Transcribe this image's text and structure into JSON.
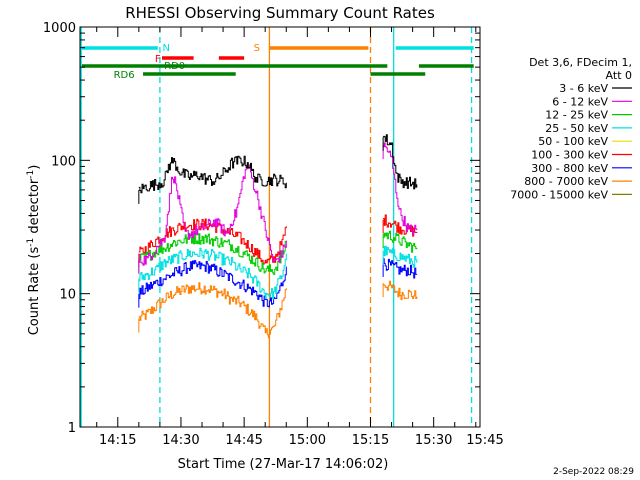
{
  "chart_data": {
    "type": "line",
    "title": "RHESSI Observing Summary Count Rates",
    "xlabel": "Start Time (27-Mar-17 14:06:02)",
    "ylabel_main": "Count Rate (s",
    "ylabel_sup1": "-1",
    "ylabel_mid": " detector",
    "ylabel_sup2": "-1",
    "ylabel_end": ")",
    "yscale": "log",
    "ylim": [
      1,
      1000
    ],
    "xlim_minutes": [
      6.03,
      101.0
    ],
    "y_ticks": [
      {
        "value": 1,
        "label": "1"
      },
      {
        "value": 10,
        "label": "10"
      },
      {
        "value": 100,
        "label": "100"
      },
      {
        "value": 1000,
        "label": "1000"
      }
    ],
    "x_ticks": [
      {
        "minute": 15,
        "label": "14:15"
      },
      {
        "minute": 30,
        "label": "14:30"
      },
      {
        "minute": 45,
        "label": "14:45"
      },
      {
        "minute": 60,
        "label": "15:00"
      },
      {
        "minute": 75,
        "label": "15:15"
      },
      {
        "minute": 90,
        "label": "15:30"
      },
      {
        "minute": 105,
        "label": "15:45"
      }
    ],
    "legend": {
      "placement": "right",
      "header": [
        "Det 3,6, FDecim 1,",
        "Att 0"
      ],
      "entries": [
        {
          "label": "3 - 6 keV",
          "color": "#000000"
        },
        {
          "label": "6 - 12 keV",
          "color": "#e000e0"
        },
        {
          "label": "12 - 25 keV",
          "color": "#00cc00"
        },
        {
          "label": "25 - 50 keV",
          "color": "#00e0e0"
        },
        {
          "label": "50 - 100 keV",
          "color": "#e0e000"
        },
        {
          "label": "100 - 300 keV",
          "color": "#ff0000"
        },
        {
          "label": "300 - 800 keV",
          "color": "#0000ff"
        },
        {
          "label": "800 - 7000 keV",
          "color": "#ff8000"
        },
        {
          "label": "7000 - 15000 keV",
          "color": "#808000"
        }
      ]
    },
    "vertical_markers": [
      {
        "minute": 6.3,
        "color": "#00e0e0",
        "style": "solid"
      },
      {
        "minute": 25.0,
        "color": "#00e0e0",
        "style": "dashed"
      },
      {
        "minute": 51.0,
        "color": "#ff8000",
        "style": "solid"
      },
      {
        "minute": 75.0,
        "color": "#ff8000",
        "style": "dashed"
      },
      {
        "minute": 80.5,
        "color": "#00e0e0",
        "style": "solid"
      },
      {
        "minute": 99.0,
        "color": "#00e0e0",
        "style": "dashed"
      }
    ],
    "flag_bars": [
      {
        "label": "N",
        "color": "#00e0e0",
        "label_color": "#00e0e0",
        "segments": [
          [
            6.5,
            24.5
          ],
          [
            81.0,
            99.5
          ]
        ],
        "label_minute": 26.5,
        "row": 0
      },
      {
        "label": "S",
        "color": "#ff8000",
        "label_color": "#ff8000",
        "segments": [
          [
            51.0,
            74.5
          ]
        ],
        "label_minute": 48.0,
        "row": 0
      },
      {
        "label": "F",
        "color": "#ff0000",
        "label_color": "#ff0000",
        "segments": [
          [
            25.5,
            33.0
          ],
          [
            39.0,
            45.0
          ]
        ],
        "label_minute": 24.5,
        "row": 1
      },
      {
        "label": "RD0",
        "color": "#008000",
        "label_color": "#008000",
        "segments": [
          [
            6.5,
            79.0
          ],
          [
            86.5,
            99.5
          ]
        ],
        "label_minute": 28.5,
        "row": 2
      },
      {
        "label": "RD6",
        "color": "#008000",
        "label_color": "#008000",
        "segments": [
          [
            21.0,
            43.0
          ],
          [
            75.0,
            88.0
          ]
        ],
        "label_minute": 16.5,
        "row": 3
      }
    ],
    "series": [
      {
        "name": "3 - 6 keV",
        "color": "#000000",
        "segments": [
          {
            "x": [
              20,
              21,
              22,
              24,
              26,
              27,
              28,
              30,
              32,
              34,
              36,
              38,
              40,
              42,
              44,
              46,
              47,
              48,
              50,
              52,
              54,
              55
            ],
            "y": [
              60,
              62,
              64,
              66,
              70,
              90,
              100,
              80,
              75,
              78,
              72,
              70,
              80,
              95,
              100,
              95,
              80,
              72,
              70,
              72,
              70,
              68
            ],
            "spike": {
              "x": 29,
              "y": 105
            }
          },
          {
            "x": [
              78,
              79,
              80,
              81,
              82,
              84,
              86
            ],
            "y": [
              150,
              140,
              130,
              80,
              70,
              68,
              66
            ]
          }
        ]
      },
      {
        "name": "6 - 12 keV",
        "color": "#e000e0",
        "segments": [
          {
            "x": [
              20,
              22,
              24,
              26,
              27,
              28,
              29,
              30,
              31,
              32,
              34,
              36,
              38,
              40,
              41,
              42,
              43,
              44,
              45,
              46,
              48,
              50,
              52,
              54,
              55
            ],
            "y": [
              18,
              18,
              22,
              26,
              45,
              80,
              60,
              40,
              28,
              28,
              30,
              32,
              35,
              30,
              28,
              35,
              40,
              55,
              80,
              90,
              55,
              30,
              17,
              20,
              25
            ]
          },
          {
            "x": [
              78,
              79,
              80,
              81,
              82,
              84,
              86
            ],
            "y": [
              130,
              120,
              100,
              60,
              40,
              30,
              30
            ]
          }
        ]
      },
      {
        "name": "12 - 25 keV",
        "color": "#00cc00",
        "segments": [
          {
            "x": [
              20,
              22,
              24,
              26,
              28,
              30,
              32,
              34,
              36,
              38,
              40,
              42,
              44,
              46,
              48,
              50,
              52,
              54,
              55
            ],
            "y": [
              18,
              19,
              21,
              22,
              24,
              25,
              26,
              26,
              26,
              25,
              24,
              23,
              21,
              19,
              17,
              15,
              15,
              19,
              25
            ]
          },
          {
            "x": [
              78,
              80,
              82,
              84,
              86
            ],
            "y": [
              28,
              27,
              25,
              23,
              22
            ]
          }
        ]
      },
      {
        "name": "25 - 50 keV",
        "color": "#00e0e0",
        "segments": [
          {
            "x": [
              20,
              22,
              24,
              26,
              28,
              30,
              32,
              34,
              36,
              38,
              40,
              42,
              44,
              46,
              48,
              50,
              52,
              54,
              55
            ],
            "y": [
              13,
              14,
              15,
              17,
              18,
              19,
              20,
              20,
              20,
              19,
              18,
              17,
              15,
              14,
              12,
              10,
              10,
              14,
              20
            ]
          },
          {
            "x": [
              78,
              80,
              82,
              84,
              86
            ],
            "y": [
              21,
              20,
              19,
              18,
              17
            ]
          }
        ]
      },
      {
        "name": "100 - 300 keV",
        "color": "#ff0000",
        "segments": [
          {
            "x": [
              20,
              22,
              24,
              26,
              28,
              30,
              32,
              34,
              36,
              38,
              40,
              42,
              44,
              46,
              48,
              50,
              52,
              54,
              55
            ],
            "y": [
              20,
              22,
              25,
              28,
              30,
              32,
              33,
              33,
              33,
              32,
              30,
              28,
              26,
              23,
              20,
              17,
              18,
              24,
              32
            ]
          },
          {
            "x": [
              78,
              80,
              82,
              84,
              86
            ],
            "y": [
              36,
              34,
              31,
              30,
              29
            ]
          }
        ]
      },
      {
        "name": "300 - 800 keV",
        "color": "#0000ff",
        "segments": [
          {
            "x": [
              20,
              22,
              24,
              26,
              28,
              30,
              32,
              34,
              36,
              38,
              40,
              42,
              44,
              46,
              48,
              50,
              52,
              54,
              55
            ],
            "y": [
              10,
              11,
              12,
              13,
              14,
              15,
              16,
              16,
              16,
              15,
              14,
              13,
              12,
              11,
              10,
              8.5,
              8.5,
              12,
              16
            ]
          },
          {
            "x": [
              78,
              80,
              82,
              84,
              86
            ],
            "y": [
              17,
              16,
              15,
              15,
              14
            ]
          }
        ]
      },
      {
        "name": "800 - 7000 keV",
        "color": "#ff8000",
        "segments": [
          {
            "x": [
              20,
              22,
              24,
              26,
              28,
              30,
              32,
              34,
              36,
              38,
              40,
              42,
              44,
              46,
              48,
              50,
              52,
              54,
              55
            ],
            "y": [
              6.5,
              7,
              8,
              9,
              10,
              10.5,
              11,
              11,
              11,
              10.5,
              10,
              9,
              8.5,
              7.5,
              6.5,
              5,
              5.5,
              8.5,
              11
            ]
          },
          {
            "x": [
              78,
              80,
              82,
              84,
              86
            ],
            "y": [
              12,
              11,
              10,
              10,
              9.5
            ]
          }
        ]
      }
    ],
    "timestamp": "2-Sep-2022 08:29"
  }
}
